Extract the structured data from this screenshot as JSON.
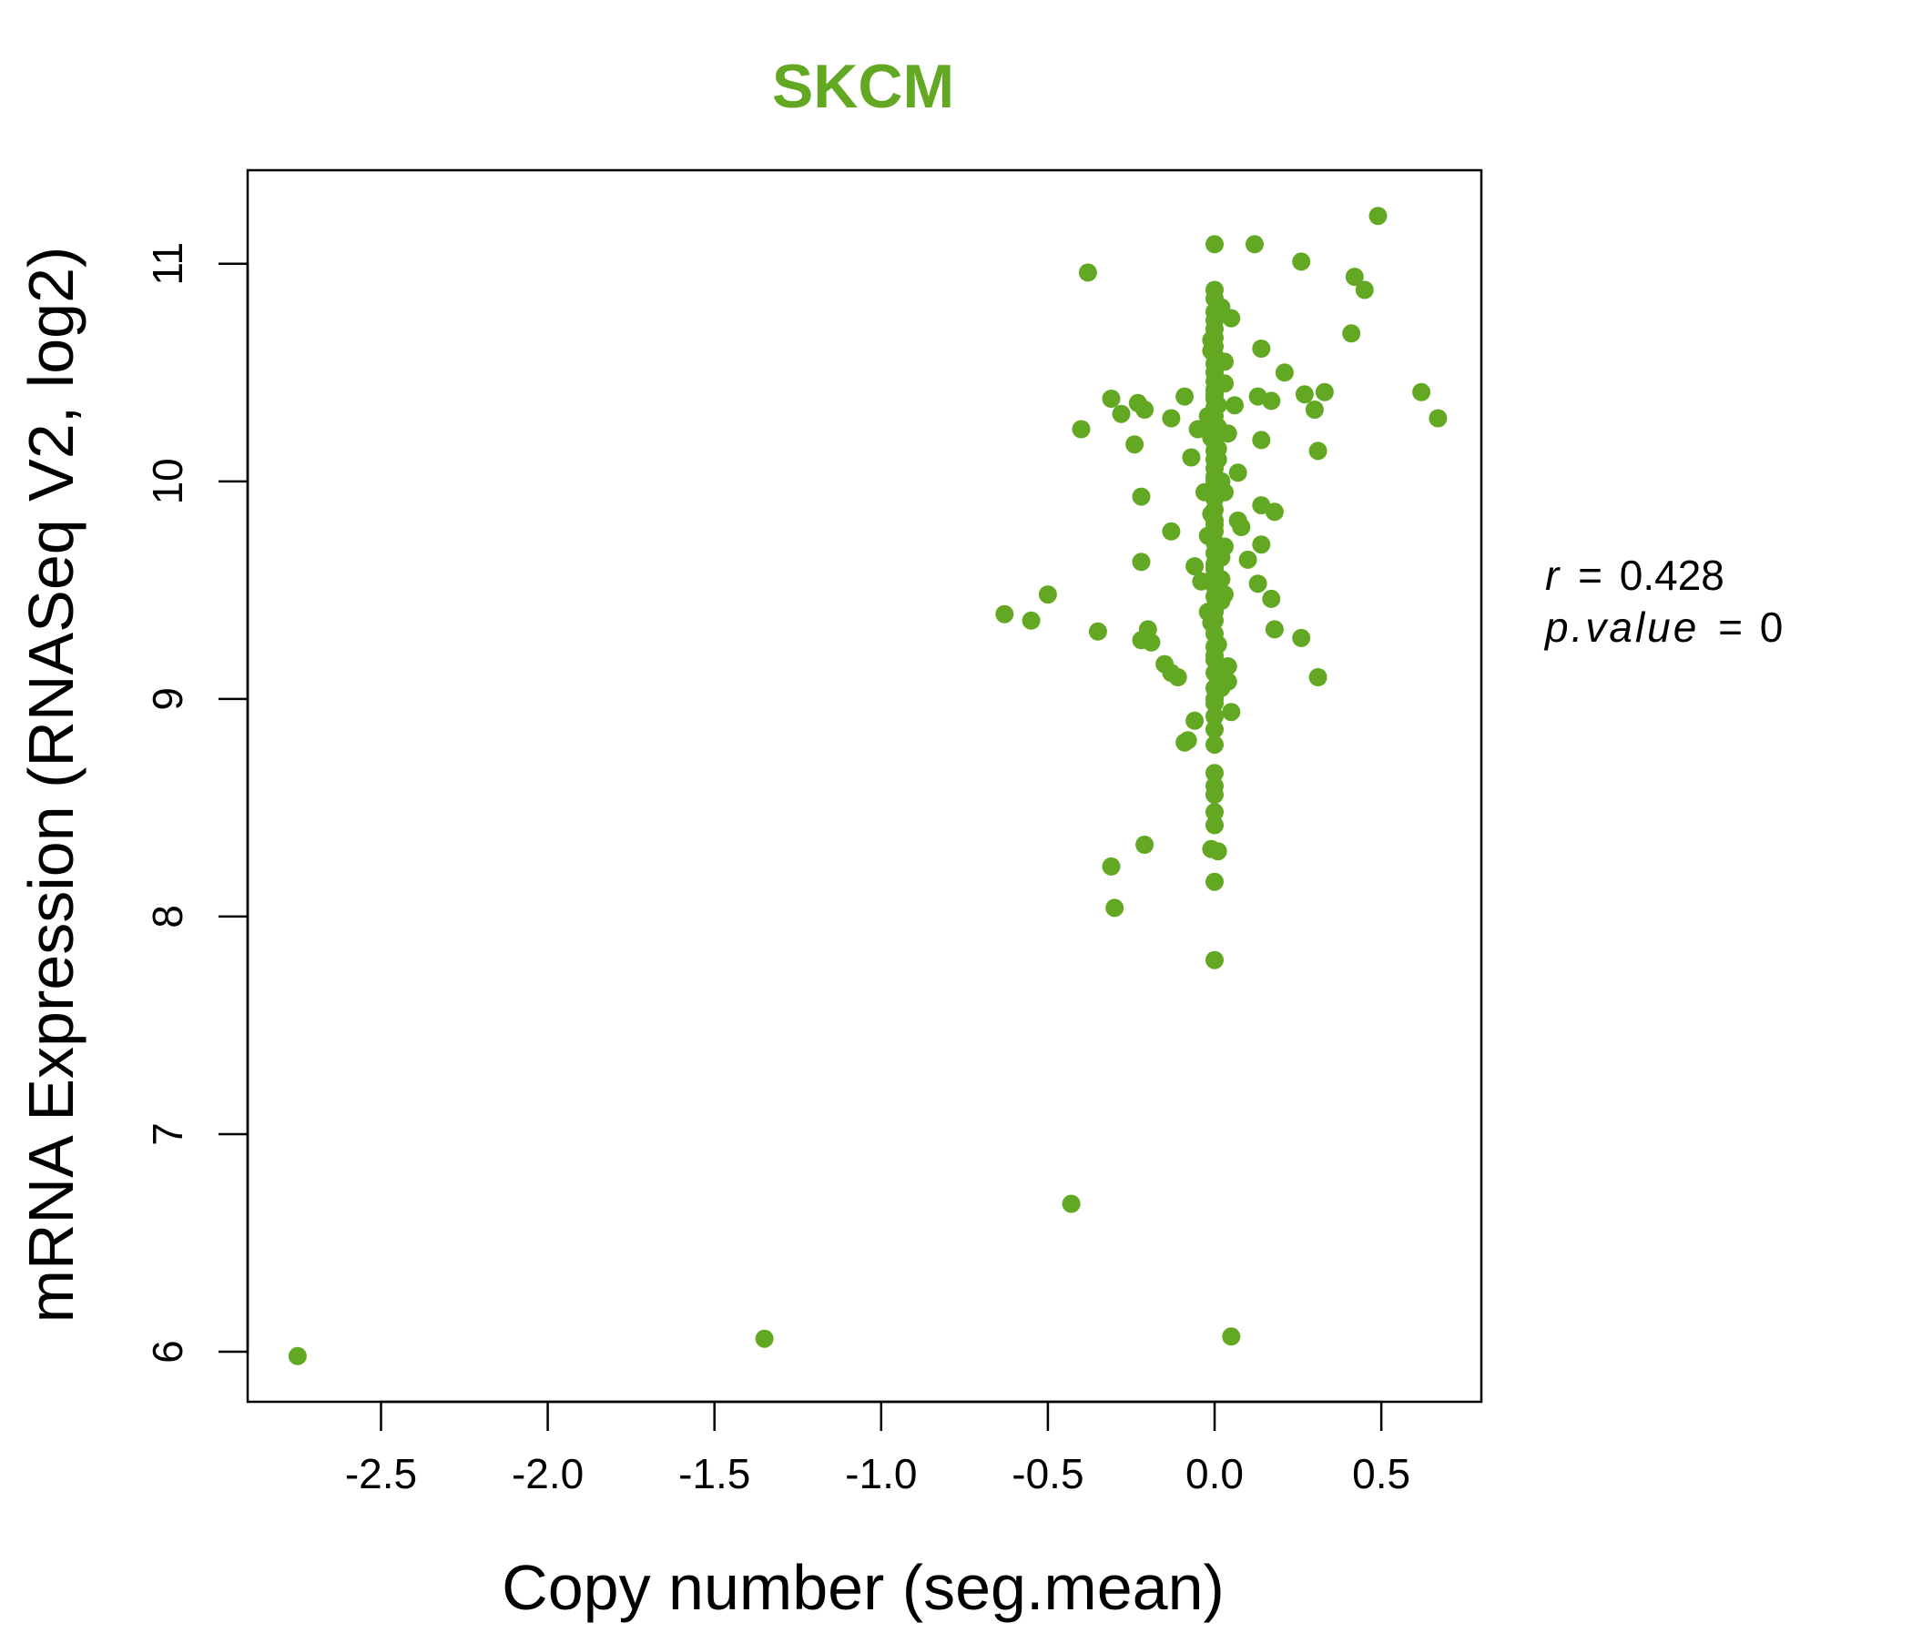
{
  "chart_data": {
    "type": "scatter",
    "title": "SKCM",
    "xlabel": "Copy number (seg.mean)",
    "ylabel": "mRNA Expression (RNASeq V2, log2)",
    "xlim": [
      -2.9,
      0.8
    ],
    "ylim": [
      5.77,
      11.43
    ],
    "x_ticks": [
      -2.5,
      -2.0,
      -1.5,
      -1.0,
      -0.5,
      0.0,
      0.5
    ],
    "x_tick_labels": [
      "-2.5",
      "-2.0",
      "-1.5",
      "-1.0",
      "-0.5",
      "0.0",
      "0.5"
    ],
    "y_ticks": [
      6,
      7,
      8,
      9,
      10,
      11
    ],
    "y_tick_labels": [
      "6",
      "7",
      "8",
      "9",
      "10",
      "11"
    ],
    "grid": false,
    "legend": "none",
    "annotation": {
      "r_label": "r",
      "r_value": "0.428",
      "p_label": "p.value",
      "p_value": "0"
    },
    "colors": {
      "points": "#62A823",
      "title": "#62A823",
      "axis": "#000000"
    },
    "series": [
      {
        "x": [
          -2.75,
          -1.35,
          0.05,
          -0.43,
          0.0,
          0.0,
          -0.3,
          -0.31,
          -0.21,
          -0.01,
          0.01,
          0.0,
          -0.09,
          -0.08,
          -0.06,
          -0.11,
          -0.13,
          -0.15,
          -0.22,
          -0.19,
          -0.2,
          -0.35,
          -0.5,
          -0.55,
          -0.63,
          -0.06,
          -0.04,
          -0.22,
          -0.13,
          -0.22,
          -0.24,
          -0.4,
          -0.13,
          -0.05,
          -0.07,
          -0.28,
          -0.31,
          -0.23,
          -0.21,
          -0.09,
          -0.38,
          -0.01,
          0.04,
          0.07,
          0.1,
          0.13,
          0.17,
          0.18,
          0.26,
          0.31,
          0.14,
          0.18,
          0.14,
          0.07,
          0.08,
          0.14,
          0.31,
          0.06,
          0.13,
          0.17,
          0.21,
          0.27,
          0.3,
          0.33,
          0.62,
          0.67,
          0.14,
          0.41,
          0.42,
          0.45,
          0.26,
          0.0,
          0.12,
          0.49,
          0.05,
          0.04,
          0.05,
          0.03,
          0.0,
          0.0,
          0.0,
          0.0,
          0.0,
          0.0,
          0.0,
          0.0,
          0.0,
          0.0,
          0.0,
          0.0,
          0.0,
          0.0,
          0.0,
          0.0,
          0.0,
          0.0,
          0.0,
          0.0,
          0.0,
          0.0,
          0.0,
          0.0,
          0.0,
          0.0,
          0.0,
          0.0,
          0.0,
          0.0,
          0.0,
          0.0,
          0.0,
          0.0,
          0.0,
          0.0,
          0.0,
          0.0,
          0.0,
          0.0,
          0.0,
          0.0,
          0.0,
          0.0,
          0.0,
          0.0,
          0.0,
          0.0,
          0.0,
          0.0,
          0.0,
          0.0,
          0.0,
          0.0,
          0.0,
          0.0,
          0.02,
          -0.01,
          0.03,
          -0.02,
          0.01,
          0.02,
          -0.01,
          0.03,
          0.02,
          -0.02,
          0.01,
          0.04,
          -0.03,
          0.02,
          0.01,
          -0.01,
          0.03,
          0.02,
          -0.02,
          0.01,
          0.02,
          0.03,
          -0.01,
          0.01
        ],
        "y": [
          5.98,
          6.06,
          6.07,
          6.68,
          7.8,
          8.16,
          8.04,
          8.23,
          8.33,
          8.31,
          8.3,
          8.42,
          8.8,
          8.81,
          8.9,
          9.1,
          9.12,
          9.16,
          9.27,
          9.26,
          9.32,
          9.31,
          9.48,
          9.36,
          9.39,
          9.61,
          9.54,
          9.63,
          9.77,
          9.93,
          10.17,
          10.24,
          10.29,
          10.24,
          10.11,
          10.31,
          10.38,
          10.36,
          10.33,
          10.39,
          10.96,
          10.2,
          10.22,
          10.04,
          9.64,
          9.53,
          9.46,
          9.32,
          9.28,
          9.1,
          9.71,
          9.86,
          9.89,
          9.82,
          9.79,
          10.19,
          10.14,
          10.35,
          10.39,
          10.37,
          10.5,
          10.4,
          10.33,
          10.41,
          10.41,
          10.29,
          10.61,
          10.68,
          10.94,
          10.88,
          11.01,
          11.09,
          11.09,
          11.22,
          10.75,
          9.08,
          8.94,
          9.48,
          8.48,
          8.56,
          8.6,
          8.66,
          8.79,
          8.86,
          8.92,
          8.98,
          9.05,
          9.12,
          9.18,
          9.24,
          9.3,
          9.36,
          9.42,
          9.47,
          9.52,
          9.57,
          9.62,
          9.67,
          9.72,
          9.77,
          9.82,
          9.87,
          9.92,
          9.97,
          10.02,
          10.06,
          10.1,
          10.14,
          10.18,
          10.22,
          10.26,
          10.3,
          10.34,
          10.38,
          10.42,
          10.46,
          10.5,
          10.54,
          10.58,
          10.62,
          10.66,
          10.7,
          10.74,
          10.78,
          10.84,
          10.88,
          9.0,
          9.2,
          9.4,
          9.6,
          9.8,
          10.0,
          10.2,
          10.4,
          10.8,
          10.6,
          10.45,
          10.3,
          10.15,
          10.0,
          9.85,
          9.7,
          9.55,
          9.4,
          9.25,
          9.15,
          9.95,
          9.65,
          10.25,
          9.35,
          10.55,
          9.05,
          9.75,
          10.35,
          9.45,
          9.95,
          10.65,
          10.1
        ]
      }
    ]
  }
}
